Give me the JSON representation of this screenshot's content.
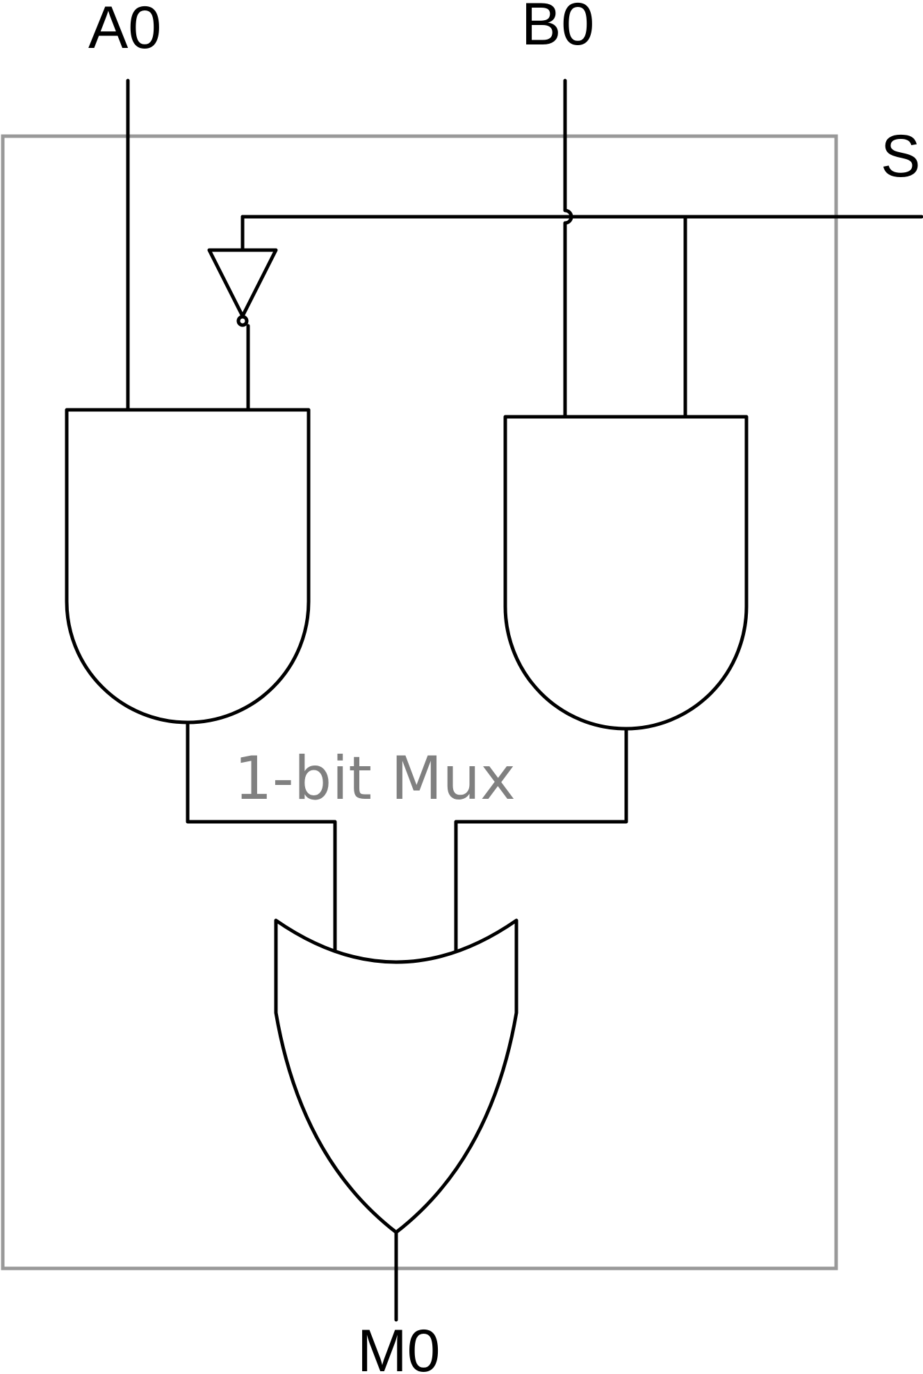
{
  "module": {
    "label": "1-bit Mux",
    "box_color": "#999999",
    "label_color": "#808080"
  },
  "inputs": {
    "a": "A0",
    "b": "B0",
    "select": "S"
  },
  "output": {
    "label": "M0"
  },
  "gates": [
    {
      "type": "NOT",
      "inputs": [
        "S"
      ]
    },
    {
      "type": "AND",
      "inputs": [
        "A0",
        "NOT S"
      ]
    },
    {
      "type": "AND",
      "inputs": [
        "B0",
        "S"
      ]
    },
    {
      "type": "OR",
      "inputs": [
        "AND A0",
        "AND B0"
      ],
      "output": "M0"
    }
  ]
}
